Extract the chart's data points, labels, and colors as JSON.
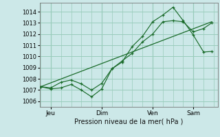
{
  "bg_color": "#cce8e8",
  "grid_color": "#99ccbb",
  "line_color": "#1a6b2a",
  "xlabel_text": "Pression niveau de la mer( hPa )",
  "ylim": [
    1005.5,
    1014.8
  ],
  "yticks": [
    1006,
    1007,
    1008,
    1009,
    1010,
    1011,
    1012,
    1013,
    1014
  ],
  "xtick_labels": [
    "Jeu",
    "Dim",
    "Ven",
    "Sam"
  ],
  "xtick_positions": [
    0.5,
    3.0,
    5.5,
    7.5
  ],
  "xlim": [
    -0.05,
    8.7
  ],
  "series1_x": [
    0.0,
    0.5,
    1.0,
    1.5,
    2.0,
    2.5,
    3.0,
    3.5,
    4.0,
    4.5,
    5.0,
    5.5,
    6.0,
    6.5,
    7.0,
    7.5,
    8.0,
    8.4
  ],
  "series1_y": [
    1007.3,
    1007.1,
    1007.2,
    1007.5,
    1007.0,
    1006.4,
    1007.1,
    1008.9,
    1009.5,
    1010.9,
    1011.8,
    1013.1,
    1013.7,
    1014.4,
    1013.2,
    1011.9,
    1010.4,
    1010.45
  ],
  "series2_x": [
    0.0,
    0.5,
    1.0,
    1.5,
    2.0,
    2.5,
    3.0,
    3.5,
    4.0,
    4.5,
    5.0,
    5.5,
    6.0,
    6.5,
    7.0,
    7.5,
    8.0,
    8.4
  ],
  "series2_y": [
    1007.3,
    1007.2,
    1007.7,
    1007.9,
    1007.55,
    1007.0,
    1007.6,
    1008.9,
    1009.6,
    1010.3,
    1011.3,
    1012.0,
    1013.1,
    1013.2,
    1013.1,
    1012.2,
    1012.5,
    1013.0
  ],
  "series3_x": [
    0.0,
    8.4
  ],
  "series3_y": [
    1007.3,
    1013.1
  ],
  "ytick_fontsize": 6.0,
  "xtick_fontsize": 6.5,
  "xlabel_fontsize": 7.0
}
